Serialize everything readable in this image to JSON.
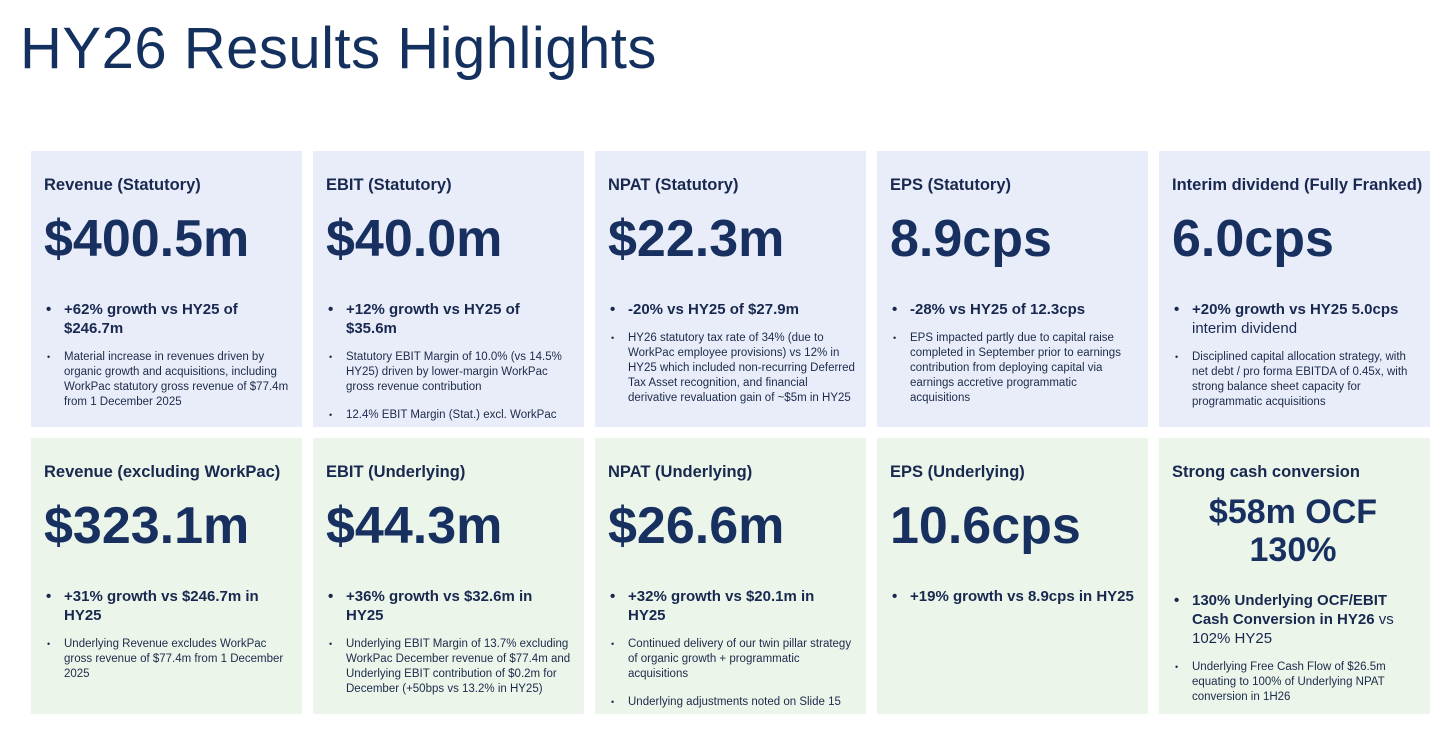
{
  "page": {
    "title": "HY26 Results Highlights"
  },
  "cards": [
    {
      "title": "Revenue (Statutory)",
      "value": "$400.5m",
      "highlight": "+62% growth vs HY25 of $246.7m",
      "details": [
        "Material increase in revenues driven by organic growth and acquisitions, including WorkPac statutory gross revenue of $77.4m from 1 December 2025"
      ]
    },
    {
      "title": "EBIT (Statutory)",
      "value": "$40.0m",
      "highlight": "+12% growth vs HY25 of $35.6m",
      "details": [
        "Statutory EBIT Margin of 10.0% (vs 14.5% HY25) driven by lower-margin WorkPac gross revenue contribution",
        "12.4% EBIT Margin (Stat.) excl. WorkPac"
      ]
    },
    {
      "title": "NPAT (Statutory)",
      "value": "$22.3m",
      "highlight": "-20% vs HY25 of $27.9m",
      "details": [
        "HY26 statutory tax rate of 34% (due to WorkPac employee provisions) vs 12% in HY25 which included non-recurring Deferred Tax Asset recognition, and financial derivative revaluation gain of ~$5m in HY25"
      ]
    },
    {
      "title": "EPS (Statutory)",
      "value": "8.9cps",
      "highlight": "-28% vs HY25 of 12.3cps",
      "details": [
        "EPS impacted partly due to capital raise completed in September prior to earnings contribution from deploying capital via earnings accretive programmatic acquisitions"
      ]
    },
    {
      "title": "Interim dividend (Fully Franked)",
      "value": "6.0cps",
      "highlight": "+20% growth vs HY25 5.0cps",
      "highlight_light": "interim dividend",
      "details": [
        "Disciplined capital allocation strategy, with net debt / pro forma EBITDA of 0.45x, with strong balance sheet capacity for programmatic acquisitions"
      ]
    },
    {
      "title": "Revenue (excluding WorkPac)",
      "value": "$323.1m",
      "highlight": "+31% growth vs $246.7m in HY25",
      "details": [
        "Underlying Revenue excludes WorkPac gross revenue of $77.4m from 1 December 2025"
      ]
    },
    {
      "title": "EBIT (Underlying)",
      "value": "$44.3m",
      "highlight": "+36% growth vs $32.6m in HY25",
      "details": [
        "Underlying EBIT Margin of 13.7% excluding WorkPac December revenue of $77.4m and Underlying EBIT contribution of $0.2m for December (+50bps vs 13.2% in HY25)"
      ]
    },
    {
      "title": "NPAT (Underlying)",
      "value": "$26.6m",
      "highlight": "+32% growth vs $20.1m in HY25",
      "details": [
        "Continued delivery of our twin pillar strategy of organic growth + programmatic acquisitions",
        "Underlying adjustments noted on Slide 15"
      ]
    },
    {
      "title": "EPS (Underlying)",
      "value": "10.6cps",
      "highlight": "+19% growth vs 8.9cps in HY25",
      "details": []
    },
    {
      "title": "Strong cash conversion",
      "value_line1": "$58m OCF",
      "value_line2": "130%",
      "highlight": "130% Underlying OCF/EBIT Cash Conversion in HY26",
      "highlight_light": "vs 102% HY25",
      "details": [
        "Underlying Free Cash Flow of $26.5m equating to 100% of Underlying NPAT conversion in 1H26"
      ]
    }
  ]
}
